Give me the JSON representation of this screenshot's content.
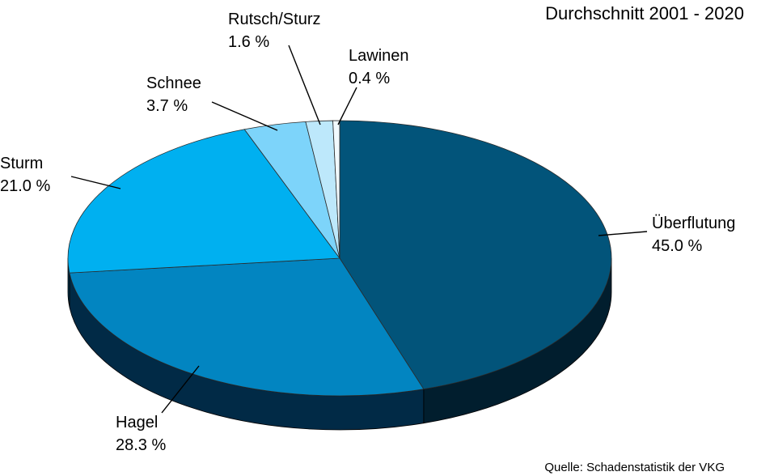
{
  "chart_data": {
    "type": "pie",
    "title": "Durchschnitt 2001 - 2020",
    "source": "Quelle: Schadenstatistik der VKG",
    "slices": [
      {
        "label": "Überflutung",
        "value": 45.0,
        "value_label": "45.0 %",
        "color": "#02547A",
        "side_color": "#011E2E"
      },
      {
        "label": "Hagel",
        "value": 28.3,
        "value_label": "28.3 %",
        "color": "#0285C1",
        "side_color": "#012A46"
      },
      {
        "label": "Sturm",
        "value": 21.0,
        "value_label": "21.0 %",
        "color": "#00B0F0",
        "side_color": "#013654"
      },
      {
        "label": "Schnee",
        "value": 3.7,
        "value_label": "3.7 %",
        "color": "#7DD4FA",
        "side_color": "#3D7FA0"
      },
      {
        "label": "Rutsch/Sturz",
        "value": 1.6,
        "value_label": "1.6 %",
        "color": "#BDE8FB",
        "side_color": "#6FA9C4"
      },
      {
        "label": "Lawinen",
        "value": 0.4,
        "value_label": "0.4 %",
        "color": "#F2FAFE",
        "side_color": "#B9D2DE"
      }
    ]
  }
}
